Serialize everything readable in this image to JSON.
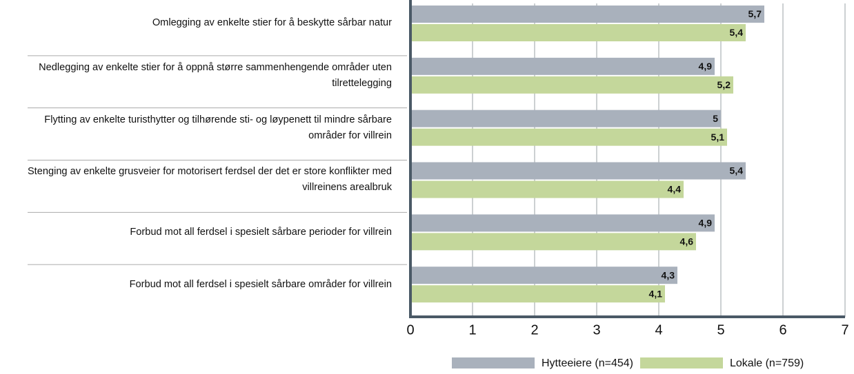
{
  "chart_data": {
    "type": "bar",
    "orientation": "horizontal",
    "categories": [
      "Omlegging av enkelte stier for å beskytte sårbar natur",
      "Nedlegging av enkelte stier for å oppnå større sammenhengende områder uten tilrettelegging",
      "Flytting av enkelte turisthytter og tilhørende sti- og løypenett til mindre sårbare områder for villrein",
      "Stenging av enkelte grusveier for motorisert ferdsel der det er store konflikter med villreinens arealbruk",
      "Forbud mot all ferdsel i spesielt sårbare perioder for villrein",
      "Forbud mot all ferdsel i spesielt sårbare områder for villrein"
    ],
    "series": [
      {
        "name": "Hytteeiere (n=454)",
        "color": "#a9b1bc",
        "values": [
          5.7,
          4.9,
          5,
          5.4,
          4.9,
          4.3
        ],
        "value_labels": [
          "5,7",
          "4,9",
          "5",
          "5,4",
          "4,9",
          "4,3"
        ]
      },
      {
        "name": "Lokale (n=759)",
        "color": "#c4d79b",
        "values": [
          5.4,
          5.2,
          5.1,
          4.4,
          4.6,
          4.1
        ],
        "value_labels": [
          "5,4",
          "5,2",
          "5,1",
          "4,4",
          "4,6",
          "4,1"
        ]
      }
    ],
    "xlim": [
      0,
      7
    ],
    "xticks": [
      0,
      1,
      2,
      3,
      4,
      5,
      6,
      7
    ],
    "grid": true
  }
}
